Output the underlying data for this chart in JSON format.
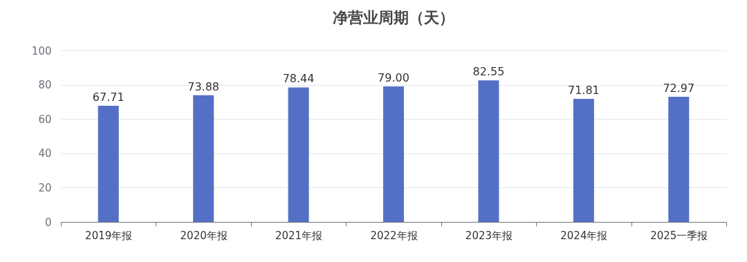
{
  "chart_data": {
    "type": "bar",
    "title": "净营业周期（天）",
    "categories": [
      "2019年报",
      "2020年报",
      "2021年报",
      "2022年报",
      "2023年报",
      "2024年报",
      "2025一季报"
    ],
    "values": [
      67.71,
      73.88,
      78.44,
      79.0,
      82.55,
      71.81,
      72.97
    ],
    "value_labels": [
      "67.71",
      "73.88",
      "78.44",
      "79.00",
      "82.55",
      "71.81",
      "72.97"
    ],
    "color": "#5470c6",
    "ylim": [
      0,
      100
    ],
    "yticks": [
      0,
      20,
      40,
      60,
      80,
      100
    ],
    "grid": "y"
  }
}
